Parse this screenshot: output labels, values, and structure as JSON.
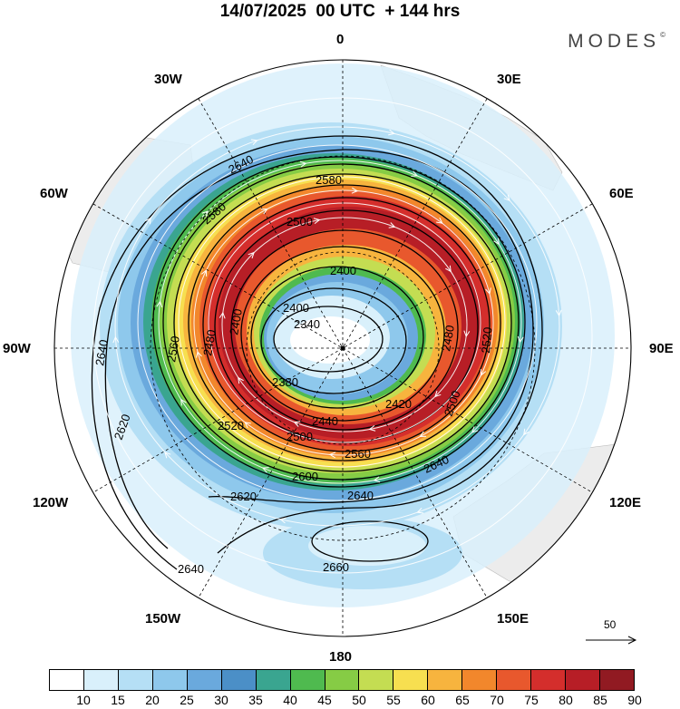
{
  "title": "14/07/2025  00 UTC  + 144 hrs",
  "brand": "MODES",
  "brand_mark": "©",
  "longitude_labels": {
    "lon_0": "0",
    "lon_30e": "30E",
    "lon_60e": "60E",
    "lon_90e": "90E",
    "lon_120e": "120E",
    "lon_150e": "150E",
    "lon_180": "180",
    "lon_150w": "150W",
    "lon_120w": "120W",
    "lon_90w": "90W",
    "lon_60w": "60W",
    "lon_30w": "30W"
  },
  "contour_labels": [
    {
      "id": "c2340",
      "value": "2340"
    },
    {
      "id": "c2380",
      "value": "2380"
    },
    {
      "id": "c2400a",
      "value": "2400"
    },
    {
      "id": "c2400b",
      "value": "2400"
    },
    {
      "id": "c2400c",
      "value": "2400"
    },
    {
      "id": "c2420",
      "value": "2420"
    },
    {
      "id": "c2440",
      "value": "2440"
    },
    {
      "id": "c2480a",
      "value": "2480"
    },
    {
      "id": "c2480b",
      "value": "2480"
    },
    {
      "id": "c2500a",
      "value": "2500"
    },
    {
      "id": "c2500b",
      "value": "2500"
    },
    {
      "id": "c2500c",
      "value": "2500"
    },
    {
      "id": "c2520a",
      "value": "2520"
    },
    {
      "id": "c2520b",
      "value": "2520"
    },
    {
      "id": "c2560a",
      "value": "2560"
    },
    {
      "id": "c2560b",
      "value": "2560"
    },
    {
      "id": "c2580a",
      "value": "2580"
    },
    {
      "id": "c2580b",
      "value": "2580"
    },
    {
      "id": "c2600",
      "value": "2600"
    },
    {
      "id": "c2620a",
      "value": "2620"
    },
    {
      "id": "c2620b",
      "value": "2620"
    },
    {
      "id": "c2640a",
      "value": "2640"
    },
    {
      "id": "c2640b",
      "value": "2640"
    },
    {
      "id": "c2640c",
      "value": "2640"
    },
    {
      "id": "c2640d",
      "value": "2640"
    },
    {
      "id": "c2640e",
      "value": "2640"
    },
    {
      "id": "c2660",
      "value": "2660"
    }
  ],
  "reference_vector": "50",
  "colorbar": {
    "colors": [
      "#ffffff",
      "#d9f0fb",
      "#b5dff5",
      "#8ec8ec",
      "#6aa9dd",
      "#4b8fc7",
      "#3aa590",
      "#4fba4f",
      "#86cc45",
      "#c4dd52",
      "#f7df50",
      "#f7b43e",
      "#f2872c",
      "#e8582d",
      "#d42e2c",
      "#b71e26",
      "#911a22"
    ],
    "labels": [
      "10",
      "15",
      "20",
      "25",
      "30",
      "35",
      "40",
      "45",
      "50",
      "55",
      "60",
      "65",
      "70",
      "75",
      "80",
      "85",
      "90"
    ]
  }
}
